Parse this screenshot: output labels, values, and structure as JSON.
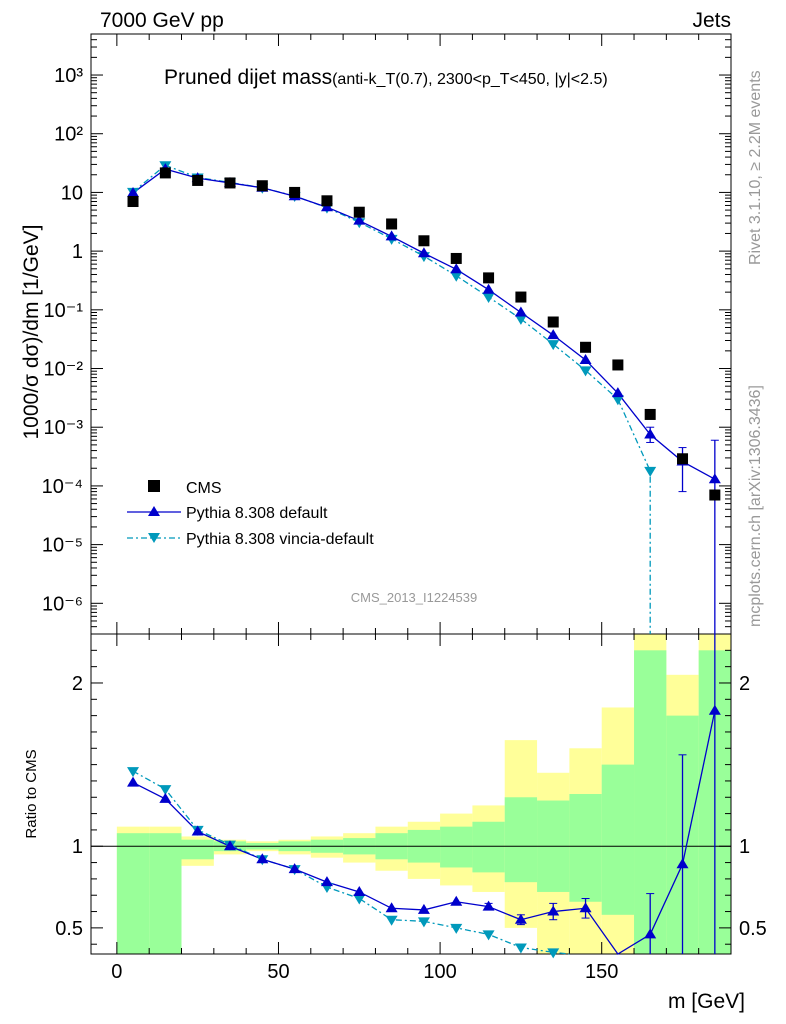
{
  "header": {
    "left": "7000 GeV pp",
    "right": "Jets"
  },
  "side_labels": {
    "top": "Rivet 3.1.10, ≥ 2.2M events",
    "bottom": "mcplots.cern.ch [arXiv:1306.3436]"
  },
  "watermark": "CMS_2013_I1224539",
  "colors": {
    "data": "#000000",
    "mc1": "#0000cc",
    "mc2": "#0099bb",
    "band_inner": "#99ff99",
    "band_outer": "#ffff99"
  },
  "chart_data": [
    {
      "type": "scatter",
      "title": "Pruned dijet mass",
      "title_detail": "(anti-k_T(0.7), 2300<p_T<450, |y|<2.5)",
      "xlabel": "m [GeV]",
      "ylabel": "1000/σ dσ)/dm [1/GeV]",
      "yscale": "log",
      "xlim": [
        -8,
        190
      ],
      "ylim": [
        3e-07,
        5000
      ],
      "ytick_labels": [
        "10⁻⁶",
        "10⁻⁵",
        "10⁻⁴",
        "10⁻³",
        "10⁻²",
        "10⁻¹",
        "1",
        "10",
        "10²",
        "10³"
      ],
      "legend_position": "bottom-left",
      "x": [
        5,
        15,
        25,
        35,
        45,
        55,
        65,
        75,
        85,
        95,
        105,
        115,
        125,
        135,
        145,
        155,
        165,
        175,
        185
      ],
      "series": [
        {
          "name": "CMS",
          "style": "data",
          "values": [
            7.0,
            21.5,
            16.0,
            14.5,
            13.0,
            10.0,
            7.2,
            4.6,
            2.9,
            1.5,
            0.75,
            0.35,
            0.165,
            0.062,
            0.023,
            0.0115,
            0.00165,
            0.00029,
            7e-05
          ]
        },
        {
          "name": "Pythia 8.308 default",
          "style": "mc1",
          "values": [
            9.8,
            25.0,
            17.5,
            14.5,
            12.0,
            8.6,
            5.6,
            3.3,
            1.78,
            0.92,
            0.49,
            0.22,
            0.09,
            0.037,
            0.014,
            0.0038,
            0.00075,
            0.00026,
            0.00013
          ]
        },
        {
          "name": "Pythia 8.308 vincia-default",
          "style": "mc2",
          "values": [
            10.2,
            29.0,
            18.0,
            14.8,
            12.0,
            8.7,
            5.5,
            3.1,
            1.62,
            0.82,
            0.38,
            0.165,
            0.07,
            0.026,
            0.0093,
            0.003,
            0.00018,
            null,
            null
          ]
        }
      ]
    },
    {
      "type": "line",
      "ylabel": "Ratio to CMS",
      "xlabel": "m [GeV]",
      "xlim": [
        -8,
        190
      ],
      "ylim": [
        0.34,
        2.3
      ],
      "xtick_labels": [
        "0",
        "50",
        "100",
        "150"
      ],
      "ytick_labels": [
        "0.5",
        "1",
        "2"
      ],
      "bin_edges": [
        0,
        10,
        20,
        30,
        40,
        50,
        60,
        70,
        80,
        90,
        100,
        110,
        120,
        130,
        140,
        150,
        160,
        170,
        180,
        190
      ],
      "band_inner": {
        "lo": [
          0.0,
          0.0,
          0.92,
          0.97,
          0.98,
          0.97,
          0.96,
          0.95,
          0.92,
          0.9,
          0.87,
          0.84,
          0.78,
          0.72,
          0.66,
          0.58,
          0.3,
          0.0,
          0.0
        ],
        "hi": [
          1.08,
          1.08,
          1.04,
          1.03,
          1.02,
          1.03,
          1.04,
          1.05,
          1.08,
          1.1,
          1.12,
          1.15,
          1.3,
          1.28,
          1.32,
          1.5,
          2.2,
          1.8,
          2.2
        ]
      },
      "band_outer": {
        "lo": [
          0.0,
          0.7,
          0.88,
          0.95,
          0.97,
          0.95,
          0.93,
          0.9,
          0.85,
          0.8,
          0.76,
          0.72,
          0.5,
          0.3,
          0.3,
          0.3,
          0.3,
          0.3,
          0.3
        ],
        "hi": [
          1.12,
          1.12,
          1.06,
          1.04,
          1.03,
          1.04,
          1.06,
          1.08,
          1.12,
          1.15,
          1.2,
          1.25,
          1.65,
          1.45,
          1.6,
          1.85,
          2.4,
          2.05,
          2.4
        ]
      },
      "x": [
        5,
        15,
        25,
        35,
        45,
        55,
        65,
        75,
        85,
        95,
        105,
        115,
        125,
        135,
        145,
        155,
        165,
        175,
        185
      ],
      "series": [
        {
          "name": "Pythia 8.308 default",
          "style": "mc1",
          "values": [
            1.39,
            1.29,
            1.09,
            1.0,
            0.92,
            0.86,
            0.78,
            0.72,
            0.62,
            0.61,
            0.66,
            0.63,
            0.55,
            0.6,
            0.62,
            0.33,
            0.46,
            0.89,
            1.83
          ],
          "err": [
            0,
            0,
            0,
            0,
            0,
            0,
            0,
            0,
            0,
            0,
            0,
            0.02,
            0.03,
            0.05,
            0.06,
            0,
            0.25,
            0.67,
            1.5
          ]
        },
        {
          "name": "Pythia 8.308 vincia-default",
          "style": "mc2",
          "values": [
            1.46,
            1.35,
            1.1,
            1.01,
            0.92,
            0.86,
            0.75,
            0.68,
            0.55,
            0.54,
            0.5,
            0.46,
            0.38,
            0.35,
            null,
            null,
            null,
            null,
            null
          ]
        }
      ]
    }
  ]
}
